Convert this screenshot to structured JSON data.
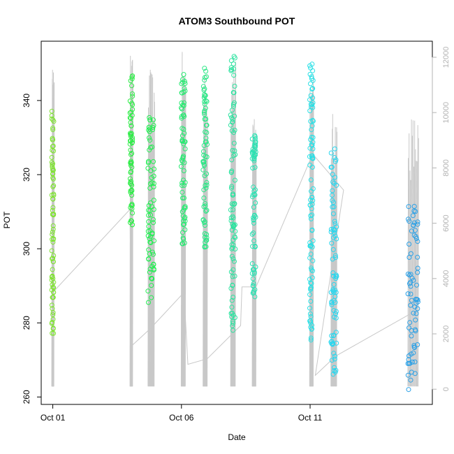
{
  "chart_data": {
    "type": "scatter",
    "title": "ATOM3 Southbound POT",
    "xlabel": "Date",
    "ylabel": "POT",
    "x_ticks": [
      "Oct 01",
      "Oct 06",
      "Oct 11"
    ],
    "x_tick_days": [
      1,
      6,
      11
    ],
    "xlim_days": [
      0.55,
      15.75
    ],
    "y_ticks": [
      260,
      280,
      300,
      320,
      340
    ],
    "ylim": [
      258,
      356
    ],
    "y2_ticks": [
      0,
      2000,
      4000,
      6000,
      8000,
      10000,
      12000
    ],
    "y2lim": [
      -550,
      12580
    ],
    "grid": false,
    "legend": "none",
    "colors": {
      "background_line": "#c8c8c8",
      "axis": "#000000",
      "secondary_axis": "#b3b3b3",
      "points_gradient": [
        "#7fe332",
        "#22ef4a",
        "#2de3a0",
        "#28dff0",
        "#2aa0e6"
      ]
    },
    "clusters": [
      {
        "day": 1.0,
        "spread": 0.04,
        "y_min": 277,
        "y_max": 339,
        "y2_peak": 11700
      },
      {
        "day": 4.05,
        "spread": 0.05,
        "y_min": 305,
        "y_max": 347,
        "y2_peak": 12100
      },
      {
        "day": 4.82,
        "spread": 0.12,
        "y_min": 283,
        "y_max": 337,
        "y2_peak": 11600
      },
      {
        "day": 6.07,
        "spread": 0.08,
        "y_min": 301,
        "y_max": 349,
        "y2_peak": 12200
      },
      {
        "day": 6.92,
        "spread": 0.08,
        "y_min": 300,
        "y_max": 349,
        "y2_peak": 11500
      },
      {
        "day": 8.0,
        "spread": 0.09,
        "y_min": 278,
        "y_max": 352,
        "y2_peak": 11900
      },
      {
        "day": 8.82,
        "spread": 0.07,
        "y_min": 287,
        "y_max": 331,
        "y2_peak": 10300
      },
      {
        "day": 11.05,
        "spread": 0.07,
        "y_min": 275,
        "y_max": 350,
        "y2_peak": 11600
      },
      {
        "day": 11.92,
        "spread": 0.11,
        "y_min": 266,
        "y_max": 327,
        "y2_peak": 10000
      },
      {
        "day": 15.0,
        "spread": 0.2,
        "y_min": 262,
        "y_max": 313,
        "y2_peak": 10000
      }
    ],
    "connector_path_y2": [
      {
        "day": 1.0,
        "y2": 3500
      },
      {
        "day": 4.0,
        "y2": 6500
      },
      {
        "day": 4.05,
        "y2": 1550
      },
      {
        "day": 4.8,
        "y2": 2200
      },
      {
        "day": 6.1,
        "y2": 3500
      },
      {
        "day": 6.25,
        "y2": 900
      },
      {
        "day": 7.0,
        "y2": 1100
      },
      {
        "day": 8.3,
        "y2": 2300
      },
      {
        "day": 8.35,
        "y2": 3700
      },
      {
        "day": 8.9,
        "y2": 3700
      },
      {
        "day": 11.1,
        "y2": 8500
      },
      {
        "day": 12.3,
        "y2": 7200
      },
      {
        "day": 11.2,
        "y2": 500
      },
      {
        "day": 12.0,
        "y2": 1200
      },
      {
        "day": 14.85,
        "y2": 2700
      }
    ]
  }
}
